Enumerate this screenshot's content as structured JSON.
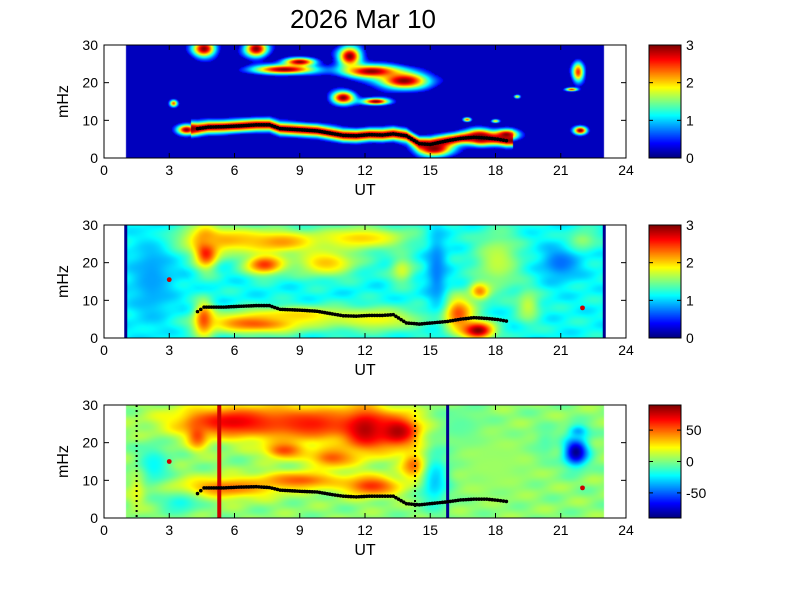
{
  "figure": {
    "title": "2026 Mar 10"
  },
  "chart_data": [
    {
      "type": "heatmap",
      "panel": "top",
      "xlabel": "UT",
      "ylabel": "mHz",
      "xlim": [
        0,
        24
      ],
      "ylim": [
        0,
        30
      ],
      "xticks": [
        "0",
        "3",
        "6",
        "9",
        "12",
        "15",
        "18",
        "21",
        "24"
      ],
      "yticks": [
        "0",
        "10",
        "20",
        "30"
      ],
      "data_range": [
        1,
        23
      ],
      "colorbar": {
        "min": 0,
        "max": 3,
        "ticks": [
          "0",
          "1",
          "2",
          "3"
        ],
        "colormap": "jet"
      },
      "background_value": 0.0,
      "blobs": [
        {
          "x": 4.6,
          "y": 29.0,
          "rx": 0.6,
          "ry": 2.5,
          "v": 3.0
        },
        {
          "x": 7.0,
          "y": 29.0,
          "rx": 0.6,
          "ry": 2.5,
          "v": 3.0
        },
        {
          "x": 8.3,
          "y": 23.5,
          "rx": 1.6,
          "ry": 1.4,
          "v": 3.0
        },
        {
          "x": 9.0,
          "y": 25.5,
          "rx": 0.8,
          "ry": 1.2,
          "v": 3.0
        },
        {
          "x": 11.3,
          "y": 27.0,
          "rx": 0.6,
          "ry": 3.0,
          "v": 3.0
        },
        {
          "x": 11.0,
          "y": 16.0,
          "rx": 0.6,
          "ry": 2.0,
          "v": 3.0
        },
        {
          "x": 12.3,
          "y": 23.0,
          "rx": 1.5,
          "ry": 2.0,
          "v": 3.0
        },
        {
          "x": 12.5,
          "y": 15.0,
          "rx": 0.7,
          "ry": 1.0,
          "v": 3.0
        },
        {
          "x": 13.8,
          "y": 20.5,
          "rx": 1.3,
          "ry": 2.5,
          "v": 3.0
        },
        {
          "x": 15.2,
          "y": 2.5,
          "rx": 0.9,
          "ry": 2.3,
          "v": 3.0
        },
        {
          "x": 17.3,
          "y": 5.5,
          "rx": 0.6,
          "ry": 2.2,
          "v": 3.0
        },
        {
          "x": 18.5,
          "y": 6.2,
          "rx": 0.6,
          "ry": 1.6,
          "v": 3.0
        },
        {
          "x": 3.8,
          "y": 7.5,
          "rx": 0.5,
          "ry": 1.5,
          "v": 3.0
        },
        {
          "x": 3.2,
          "y": 14.5,
          "rx": 0.2,
          "ry": 1.0,
          "v": 2.4
        },
        {
          "x": 18.0,
          "y": 9.8,
          "rx": 0.2,
          "ry": 0.5,
          "v": 2.0
        },
        {
          "x": 21.9,
          "y": 7.3,
          "rx": 0.35,
          "ry": 1.2,
          "v": 3.0
        },
        {
          "x": 21.8,
          "y": 22.8,
          "rx": 0.3,
          "ry": 3.0,
          "v": 2.5
        },
        {
          "x": 21.5,
          "y": 18.2,
          "rx": 0.3,
          "ry": 0.5,
          "v": 2.6
        },
        {
          "x": 16.7,
          "y": 10.2,
          "rx": 0.2,
          "ry": 0.6,
          "v": 2.4
        },
        {
          "x": 19.0,
          "y": 16.3,
          "rx": 0.15,
          "ry": 0.5,
          "v": 2.0
        }
      ],
      "ridge_width": 2.6,
      "ridge_value": 3.0,
      "trace_color": "#000000",
      "trace": [
        [
          4.3,
          7.8
        ],
        [
          4.8,
          8.2
        ],
        [
          5.5,
          8.3
        ],
        [
          6.2,
          8.5
        ],
        [
          7.0,
          8.8
        ],
        [
          7.6,
          8.8
        ],
        [
          8.1,
          7.8
        ],
        [
          9.0,
          7.5
        ],
        [
          9.8,
          7.2
        ],
        [
          10.5,
          6.5
        ],
        [
          11.0,
          6.0
        ],
        [
          11.6,
          5.9
        ],
        [
          12.2,
          6.2
        ],
        [
          12.8,
          6.1
        ],
        [
          13.3,
          6.4
        ],
        [
          13.9,
          5.9
        ],
        [
          14.5,
          3.8
        ],
        [
          15.0,
          3.6
        ],
        [
          15.8,
          4.6
        ],
        [
          16.4,
          5.2
        ],
        [
          17.0,
          5.5
        ],
        [
          17.6,
          5.3
        ],
        [
          18.1,
          5.0
        ],
        [
          18.5,
          4.6
        ]
      ],
      "markers": []
    },
    {
      "type": "heatmap",
      "panel": "middle",
      "xlabel": "UT",
      "ylabel": "mHz",
      "xlim": [
        0,
        24
      ],
      "ylim": [
        0,
        30
      ],
      "xticks": [
        "0",
        "3",
        "6",
        "9",
        "12",
        "15",
        "18",
        "21",
        "24"
      ],
      "yticks": [
        "0",
        "10",
        "20",
        "30"
      ],
      "data_range": [
        1,
        23
      ],
      "edge_lines_color": "#00008f",
      "colorbar": {
        "min": 0,
        "max": 3,
        "ticks": [
          "0",
          "1",
          "2",
          "3"
        ],
        "colormap": "jet"
      },
      "background_value": 1.15,
      "blobs": [
        {
          "x": 4.7,
          "y": 24.0,
          "rx": 0.6,
          "ry": 5.5,
          "v": 3.0
        },
        {
          "x": 4.6,
          "y": 5.0,
          "rx": 0.5,
          "ry": 5.0,
          "v": 2.4
        },
        {
          "x": 5.5,
          "y": 26.0,
          "rx": 2.8,
          "ry": 4.0,
          "v": 2.1
        },
        {
          "x": 7.4,
          "y": 19.5,
          "rx": 1.0,
          "ry": 3.0,
          "v": 2.5
        },
        {
          "x": 8.2,
          "y": 25.5,
          "rx": 1.8,
          "ry": 3.0,
          "v": 2.2
        },
        {
          "x": 10.2,
          "y": 20.0,
          "rx": 1.6,
          "ry": 4.0,
          "v": 2.05
        },
        {
          "x": 11.8,
          "y": 26.5,
          "rx": 2.5,
          "ry": 3.5,
          "v": 2.0
        },
        {
          "x": 7.0,
          "y": 4.0,
          "rx": 2.5,
          "ry": 3.0,
          "v": 2.45
        },
        {
          "x": 9.0,
          "y": 6.0,
          "rx": 2.5,
          "ry": 2.5,
          "v": 2.0
        },
        {
          "x": 12.5,
          "y": 5.0,
          "rx": 2.5,
          "ry": 3.5,
          "v": 1.85
        },
        {
          "x": 16.3,
          "y": 6.5,
          "rx": 0.8,
          "ry": 5.0,
          "v": 2.4
        },
        {
          "x": 17.2,
          "y": 2.0,
          "rx": 0.8,
          "ry": 2.5,
          "v": 3.0
        },
        {
          "x": 17.3,
          "y": 12.5,
          "rx": 0.5,
          "ry": 2.5,
          "v": 2.4
        },
        {
          "x": 18.1,
          "y": 20.5,
          "rx": 1.2,
          "ry": 9.0,
          "v": 1.7
        },
        {
          "x": 15.3,
          "y": 18.0,
          "rx": 0.5,
          "ry": 12.0,
          "v": 0.75
        },
        {
          "x": 19.5,
          "y": 8.5,
          "rx": 0.6,
          "ry": 5.0,
          "v": 1.7
        },
        {
          "x": 21.0,
          "y": 20.0,
          "rx": 1.0,
          "ry": 5.0,
          "v": 0.7
        },
        {
          "x": 22.0,
          "y": 26.0,
          "rx": 0.8,
          "ry": 3.0,
          "v": 1.55
        },
        {
          "x": 2.2,
          "y": 16.0,
          "rx": 1.2,
          "ry": 14.0,
          "v": 0.85
        },
        {
          "x": 13.7,
          "y": 18.0,
          "rx": 0.6,
          "ry": 4.0,
          "v": 1.75
        }
      ],
      "ridge_width": 0,
      "ridge_value": 0,
      "trace_color": "#000000",
      "trace": [
        [
          4.3,
          7.0
        ],
        [
          4.6,
          8.2
        ],
        [
          5.5,
          8.2
        ],
        [
          6.2,
          8.4
        ],
        [
          7.0,
          8.6
        ],
        [
          7.6,
          8.6
        ],
        [
          8.1,
          7.6
        ],
        [
          9.0,
          7.4
        ],
        [
          9.8,
          7.1
        ],
        [
          10.5,
          6.4
        ],
        [
          11.0,
          5.9
        ],
        [
          11.6,
          5.8
        ],
        [
          12.2,
          6.0
        ],
        [
          12.8,
          6.0
        ],
        [
          13.3,
          6.2
        ],
        [
          13.9,
          4.0
        ],
        [
          14.5,
          3.7
        ],
        [
          15.8,
          4.4
        ],
        [
          16.4,
          5.0
        ],
        [
          17.0,
          5.4
        ],
        [
          17.6,
          5.2
        ],
        [
          18.1,
          4.9
        ],
        [
          18.5,
          4.5
        ]
      ],
      "markers": [
        {
          "x": 3.0,
          "y": 15.5,
          "color": "#cc0000"
        },
        {
          "x": 22.0,
          "y": 8.0,
          "color": "#cc0000"
        }
      ]
    },
    {
      "type": "heatmap",
      "panel": "bottom",
      "xlabel": "UT",
      "ylabel": "mHz",
      "xlim": [
        0,
        24
      ],
      "ylim": [
        0,
        30
      ],
      "xticks": [
        "0",
        "3",
        "6",
        "9",
        "12",
        "15",
        "18",
        "21",
        "24"
      ],
      "yticks": [
        "0",
        "10",
        "20",
        "30"
      ],
      "data_range": [
        1,
        23
      ],
      "colorbar": {
        "min": -90,
        "max": 90,
        "ticks": [
          "50",
          "0",
          "-50"
        ],
        "tick_values": [
          50,
          0,
          -50
        ],
        "colormap": "jet"
      },
      "background_value": 2,
      "blobs": [
        {
          "x": 6.0,
          "y": 25.5,
          "rx": 3.0,
          "ry": 4.5,
          "v": 72
        },
        {
          "x": 9.5,
          "y": 25.0,
          "rx": 2.5,
          "ry": 5.0,
          "v": 64
        },
        {
          "x": 12.0,
          "y": 23.5,
          "rx": 1.2,
          "ry": 6.5,
          "v": 80
        },
        {
          "x": 13.5,
          "y": 23.0,
          "rx": 1.2,
          "ry": 5.0,
          "v": 82
        },
        {
          "x": 8.3,
          "y": 18.0,
          "rx": 1.0,
          "ry": 2.5,
          "v": 56
        },
        {
          "x": 10.5,
          "y": 16.0,
          "rx": 1.2,
          "ry": 3.0,
          "v": 52
        },
        {
          "x": 4.3,
          "y": 22.0,
          "rx": 0.5,
          "ry": 4.0,
          "v": 56
        },
        {
          "x": 5.7,
          "y": 8.0,
          "rx": 2.5,
          "ry": 3.0,
          "v": 48
        },
        {
          "x": 9.0,
          "y": 10.0,
          "rx": 2.0,
          "ry": 2.5,
          "v": 52
        },
        {
          "x": 12.3,
          "y": 8.5,
          "rx": 1.4,
          "ry": 3.0,
          "v": 60
        },
        {
          "x": 16.5,
          "y": 24.0,
          "rx": 1.2,
          "ry": 6.0,
          "v": -8
        },
        {
          "x": 18.0,
          "y": 14.0,
          "rx": 2.0,
          "ry": 10.0,
          "v": 5
        },
        {
          "x": 21.7,
          "y": 17.5,
          "rx": 0.6,
          "ry": 4.0,
          "v": -88
        },
        {
          "x": 21.8,
          "y": 23.0,
          "rx": 0.5,
          "ry": 2.0,
          "v": -38
        },
        {
          "x": 20.3,
          "y": 20.0,
          "rx": 0.6,
          "ry": 5.0,
          "v": -8
        },
        {
          "x": 2.3,
          "y": 14.0,
          "rx": 0.8,
          "ry": 6.0,
          "v": -22
        },
        {
          "x": 1.5,
          "y": 7.0,
          "rx": 0.4,
          "ry": 5.0,
          "v": 18
        },
        {
          "x": 15.2,
          "y": 10.0,
          "rx": 0.7,
          "ry": 8.0,
          "v": -32
        },
        {
          "x": 3.5,
          "y": 4.0,
          "rx": 1.0,
          "ry": 3.0,
          "v": -20
        },
        {
          "x": 14.2,
          "y": 14.0,
          "rx": 0.6,
          "ry": 4.0,
          "v": 48
        }
      ],
      "ridge_width": 0,
      "ridge_value": 0,
      "trace_color": "#000000",
      "trace": [
        [
          4.3,
          6.5
        ],
        [
          4.6,
          8.0
        ],
        [
          5.5,
          8.0
        ],
        [
          6.2,
          8.2
        ],
        [
          7.0,
          8.3
        ],
        [
          7.6,
          8.1
        ],
        [
          8.1,
          7.4
        ],
        [
          9.0,
          7.1
        ],
        [
          9.8,
          6.9
        ],
        [
          10.5,
          6.2
        ],
        [
          11.0,
          5.8
        ],
        [
          11.6,
          5.6
        ],
        [
          12.2,
          5.8
        ],
        [
          12.8,
          5.8
        ],
        [
          13.3,
          5.8
        ],
        [
          13.9,
          3.8
        ],
        [
          14.5,
          3.5
        ],
        [
          15.8,
          4.3
        ],
        [
          16.4,
          4.8
        ],
        [
          17.0,
          5.0
        ],
        [
          17.6,
          5.0
        ],
        [
          18.1,
          4.7
        ],
        [
          18.5,
          4.4
        ]
      ],
      "markers": [
        {
          "x": 3.0,
          "y": 15.0,
          "color": "#cc0000"
        },
        {
          "x": 22.0,
          "y": 8.0,
          "color": "#cc0000"
        }
      ],
      "vlines": [
        {
          "x": 5.3,
          "color": "#cc0000",
          "width": 4,
          "dash": ""
        },
        {
          "x": 15.8,
          "color": "#00008f",
          "width": 3,
          "dash": ""
        },
        {
          "x": 1.5,
          "color": "#000000",
          "width": 2,
          "dash": "2,3"
        },
        {
          "x": 14.3,
          "color": "#000000",
          "width": 2,
          "dash": "2,3"
        }
      ]
    }
  ]
}
